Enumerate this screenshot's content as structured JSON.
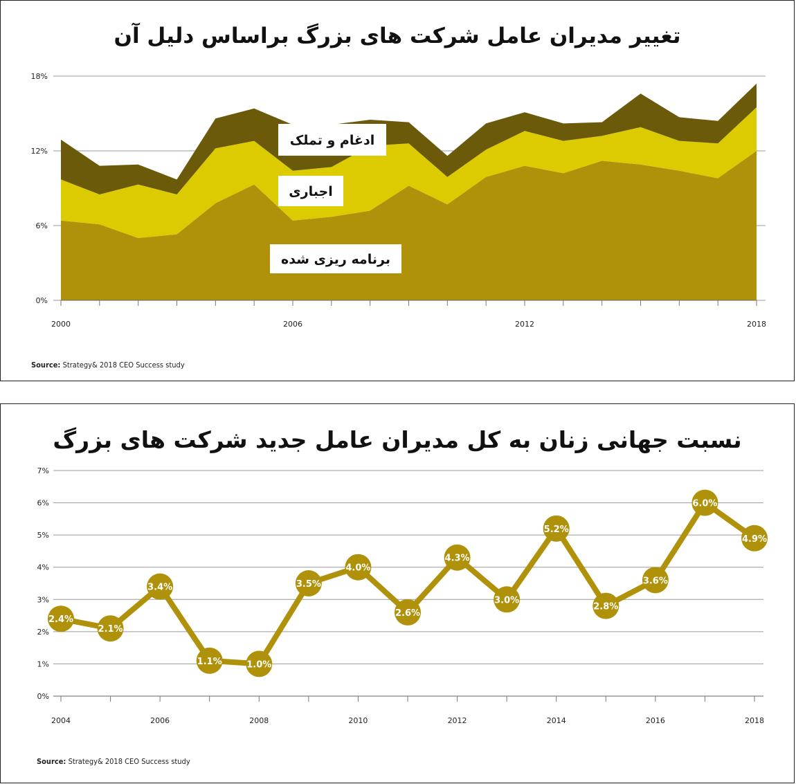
{
  "colors": {
    "planned": "#b0910a",
    "forced": "#dccb00",
    "mna": "#6b5a09",
    "line": "#b0910a",
    "grid": "#999999"
  },
  "source_label": "Source:",
  "source_text": "Strategy& 2018 CEO Success study",
  "chart_data": [
    {
      "type": "area",
      "title": "تغییر مدیران عامل شرکت های بزرگ براساس دلیل آن",
      "stacked": true,
      "x": [
        2000,
        2001,
        2002,
        2003,
        2004,
        2005,
        2006,
        2007,
        2008,
        2009,
        2010,
        2011,
        2012,
        2013,
        2014,
        2015,
        2016,
        2017,
        2018
      ],
      "xtick_labels": [
        "2000",
        "2006",
        "2012",
        "2018"
      ],
      "xtick_values": [
        2000,
        2006,
        2012,
        2018
      ],
      "ytick_labels": [
        "0%",
        "6%",
        "12%",
        "18%"
      ],
      "ytick_values": [
        0,
        6,
        12,
        18
      ],
      "ylim": [
        0,
        18
      ],
      "grid": true,
      "series": [
        {
          "name": "برنامه ریزی شده",
          "color_key": "planned",
          "values": [
            6.4,
            6.1,
            5.0,
            5.3,
            7.8,
            9.3,
            6.4,
            6.7,
            7.2,
            9.2,
            7.7,
            9.9,
            10.8,
            10.2,
            11.2,
            10.9,
            10.4,
            9.8,
            12.0
          ]
        },
        {
          "name": "اجباری",
          "color_key": "forced",
          "values": [
            3.3,
            2.4,
            4.3,
            3.2,
            4.4,
            3.5,
            4.0,
            4.0,
            5.2,
            3.4,
            2.2,
            2.2,
            2.8,
            2.6,
            2.0,
            3.0,
            2.4,
            2.8,
            3.5
          ]
        },
        {
          "name": "ادغام و تملک",
          "color_key": "mna",
          "values": [
            3.2,
            2.3,
            1.6,
            1.2,
            2.4,
            2.6,
            3.7,
            3.4,
            2.1,
            1.7,
            1.7,
            2.1,
            1.5,
            1.4,
            1.1,
            2.7,
            1.9,
            1.8,
            1.9
          ]
        }
      ]
    },
    {
      "type": "line",
      "title": "نسبت جهانی زنان به کل مدیران عامل جدید شرکت های بزرگ",
      "x": [
        2004,
        2005,
        2006,
        2007,
        2008,
        2009,
        2010,
        2011,
        2012,
        2013,
        2014,
        2015,
        2016,
        2017,
        2018
      ],
      "values": [
        2.4,
        2.1,
        3.4,
        1.1,
        1.0,
        3.5,
        4.0,
        2.6,
        4.3,
        3.0,
        5.2,
        2.8,
        3.6,
        6.0,
        4.9
      ],
      "data_labels": [
        "2.4%",
        "2.1%",
        "3.4%",
        "1.1%",
        "1.0%",
        "3.5%",
        "4.0%",
        "2.6%",
        "4.3%",
        "3.0%",
        "5.2%",
        "2.8%",
        "3.6%",
        "6.0%",
        "4.9%"
      ],
      "xtick_labels": [
        "2004",
        "2006",
        "2008",
        "2010",
        "2012",
        "2014",
        "2016",
        "2018"
      ],
      "xtick_values": [
        2004,
        2006,
        2008,
        2010,
        2012,
        2014,
        2016,
        2018
      ],
      "ytick_labels": [
        "0%",
        "1%",
        "2%",
        "3%",
        "4%",
        "5%",
        "6%",
        "7%"
      ],
      "ytick_values": [
        0,
        1,
        2,
        3,
        4,
        5,
        6,
        7
      ],
      "ylim": [
        0,
        7
      ],
      "grid": true
    }
  ]
}
